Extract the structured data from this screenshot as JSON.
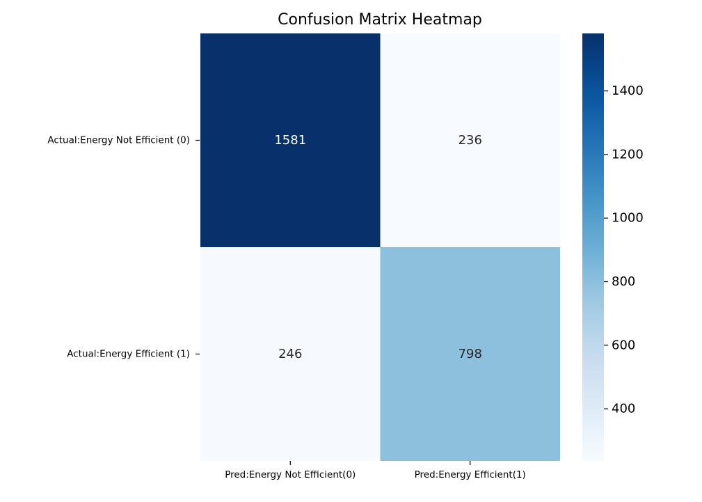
{
  "chart_data": {
    "type": "heatmap",
    "title": "Confusion Matrix Heatmap",
    "xlabel": "",
    "ylabel": "",
    "x_labels": [
      "Pred:Energy Not Efficient(0)",
      "Pred:Energy Efficient(1)"
    ],
    "y_labels": [
      "Actual:Energy Not Efficient (0)",
      "Actual:Energy Efficient (1)"
    ],
    "values": [
      [
        1581,
        236
      ],
      [
        246,
        798
      ]
    ],
    "colormap": "Blues",
    "vmin": 236,
    "vmax": 1581,
    "colorbar_ticks": [
      400,
      600,
      800,
      1000,
      1200,
      1400
    ],
    "grid": false,
    "colors": {
      "low": "#f7fbff",
      "high": "#08306b",
      "dark_text": "#262626",
      "light_text": "#ffffff"
    }
  }
}
